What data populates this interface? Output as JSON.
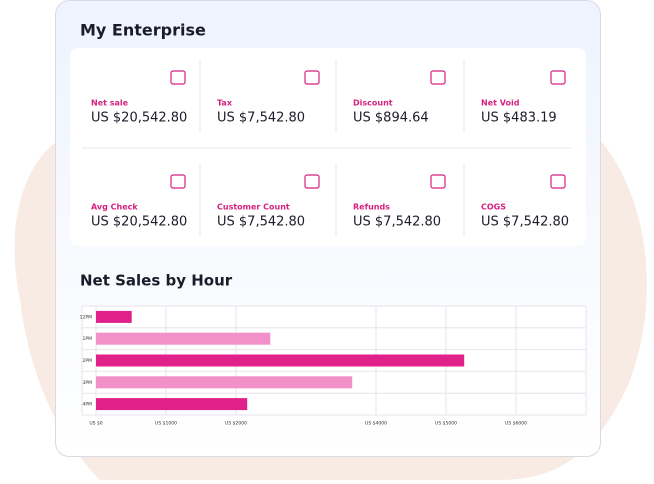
{
  "title": "My Enterprise",
  "metrics": [
    {
      "label": "Net sale",
      "value": "US $20,542.80"
    },
    {
      "label": "Tax",
      "value": "US $7,542.80"
    },
    {
      "label": "Discount",
      "value": "US $894.64"
    },
    {
      "label": "Net Void",
      "value": "US $483.19"
    },
    {
      "label": "Avg Check",
      "value": "US $20,542.80"
    },
    {
      "label": "Customer Count",
      "value": "US $7,542.80"
    },
    {
      "label": "Refunds",
      "value": "US $7,542.80"
    },
    {
      "label": "COGS",
      "value": "US $7,542.80"
    }
  ],
  "chart_data": {
    "type": "bar",
    "orientation": "horizontal",
    "title": "Net Sales by Hour",
    "categories": [
      "12PM",
      "1PM",
      "2PM",
      "3PM",
      "4PM"
    ],
    "values": [
      510,
      2490,
      5260,
      3660,
      2160
    ],
    "colors": [
      "#e0218a",
      "#f290c9",
      "#e0218a",
      "#f290c9",
      "#e0218a"
    ],
    "xlim": [
      0,
      7000
    ],
    "xticks": [
      {
        "value": 0,
        "label": "US $0"
      },
      {
        "value": 1000,
        "label": "US $1000"
      },
      {
        "value": 2000,
        "label": "US $2000"
      },
      {
        "value": 4000,
        "label": "US $4000"
      },
      {
        "value": 5000,
        "label": "US $5000"
      },
      {
        "value": 6000,
        "label": "US $6000"
      }
    ],
    "grid": true
  }
}
